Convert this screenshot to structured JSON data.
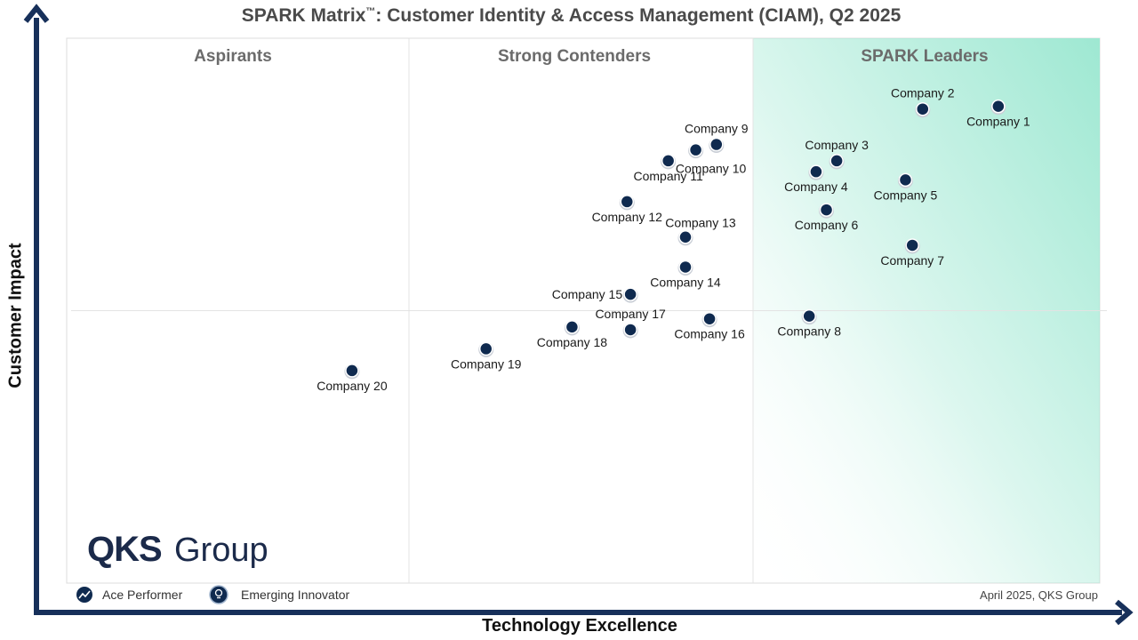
{
  "title_main": "SPARK Matrix",
  "title_tm": "™",
  "title_rest": ": Customer Identity & Access Management (CIAM), Q2 2025",
  "colors": {
    "axis": "#17305a",
    "dot": "#0f2a4f",
    "leaders_gradient": "#9ee8d2",
    "grid": "#e3e3e3"
  },
  "chart_data": {
    "type": "scatter",
    "xlabel": "Technology Excellence",
    "ylabel": "Customer Impact",
    "quadrants": [
      "Aspirants",
      "Strong Contenders",
      "SPARK Leaders"
    ],
    "xlim": [
      0,
      3
    ],
    "ylim": [
      0,
      2
    ],
    "grid": false,
    "points": [
      {
        "label": "Company 1",
        "x": 2.71,
        "y": 1.75,
        "label_pos": "below"
      },
      {
        "label": "Company 2",
        "x": 2.49,
        "y": 1.74,
        "label_pos": "above"
      },
      {
        "label": "Company 3",
        "x": 2.24,
        "y": 1.55,
        "label_pos": "above"
      },
      {
        "label": "Company 4",
        "x": 2.18,
        "y": 1.51,
        "label_pos": "below"
      },
      {
        "label": "Company 5",
        "x": 2.44,
        "y": 1.48,
        "label_pos": "below"
      },
      {
        "label": "Company 6",
        "x": 2.21,
        "y": 1.37,
        "label_pos": "below"
      },
      {
        "label": "Company 7",
        "x": 2.46,
        "y": 1.24,
        "label_pos": "below"
      },
      {
        "label": "Company 8",
        "x": 2.16,
        "y": 0.98,
        "label_pos": "below"
      },
      {
        "label": "Company 9",
        "x": 1.89,
        "y": 1.61,
        "label_pos": "above"
      },
      {
        "label": "Company 10",
        "x": 1.83,
        "y": 1.59,
        "label_pos": "below-right"
      },
      {
        "label": "Company 11",
        "x": 1.75,
        "y": 1.55,
        "label_pos": "below"
      },
      {
        "label": "Company 12",
        "x": 1.63,
        "y": 1.4,
        "label_pos": "below"
      },
      {
        "label": "Company 13",
        "x": 1.8,
        "y": 1.27,
        "label_pos": "above-right"
      },
      {
        "label": "Company 14",
        "x": 1.8,
        "y": 1.16,
        "label_pos": "below"
      },
      {
        "label": "Company 15",
        "x": 1.64,
        "y": 1.06,
        "label_pos": "left"
      },
      {
        "label": "Company 16",
        "x": 1.87,
        "y": 0.97,
        "label_pos": "below"
      },
      {
        "label": "Company 17",
        "x": 1.64,
        "y": 0.93,
        "label_pos": "above"
      },
      {
        "label": "Company 18",
        "x": 1.47,
        "y": 0.94,
        "label_pos": "below"
      },
      {
        "label": "Company 19",
        "x": 1.22,
        "y": 0.86,
        "label_pos": "below"
      },
      {
        "label": "Company 20",
        "x": 0.83,
        "y": 0.78,
        "label_pos": "below"
      }
    ]
  },
  "legend": {
    "ace_performer": "Ace Performer",
    "emerging_innovator": "Emerging Innovator",
    "ace_icon": "trend-up-icon",
    "innovator_icon": "lightbulb-icon"
  },
  "logo": {
    "brand": "QKS",
    "suffix": "Group"
  },
  "footer": "April 2025, QKS Group"
}
